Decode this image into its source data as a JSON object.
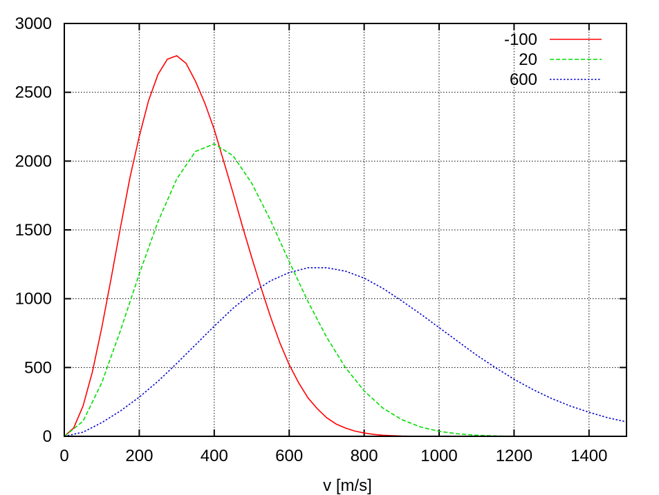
{
  "chart_data": {
    "type": "line",
    "title": "",
    "xlabel": "v [m/s]",
    "ylabel": "",
    "xlim": [
      0,
      1500
    ],
    "ylim": [
      0,
      3000
    ],
    "xticks": [
      "0",
      "200",
      "400",
      "600",
      "800",
      "1000",
      "1200",
      "1400"
    ],
    "yticks": [
      "0",
      "500",
      "1000",
      "1500",
      "2000",
      "2500",
      "3000"
    ],
    "grid": true,
    "legend_position": "top-right",
    "series": [
      {
        "name": "-100",
        "color": "#ff0000",
        "dash": "solid",
        "x": [
          0,
          25,
          50,
          75,
          100,
          125,
          150,
          175,
          200,
          225,
          250,
          275,
          300,
          325,
          350,
          375,
          400,
          425,
          450,
          475,
          500,
          525,
          550,
          575,
          600,
          625,
          650,
          675,
          700,
          725,
          750,
          775,
          800,
          825,
          850,
          875,
          900,
          950,
          1000,
          1100,
          1200,
          1300,
          1400,
          1500
        ],
        "values": [
          0,
          60,
          220,
          470,
          790,
          1150,
          1520,
          1880,
          2180,
          2440,
          2630,
          2740,
          2765,
          2710,
          2580,
          2420,
          2230,
          2000,
          1770,
          1530,
          1300,
          1080,
          870,
          680,
          520,
          390,
          280,
          200,
          135,
          90,
          60,
          38,
          24,
          14,
          8,
          5,
          2,
          0,
          0,
          0,
          0,
          0,
          0,
          0
        ]
      },
      {
        "name": "20",
        "color": "#00dd00",
        "dash": "dashed",
        "x": [
          0,
          50,
          100,
          150,
          200,
          250,
          300,
          350,
          400,
          450,
          500,
          550,
          600,
          650,
          700,
          750,
          800,
          850,
          900,
          950,
          1000,
          1050,
          1100,
          1150,
          1200,
          1300,
          1400,
          1500
        ],
        "values": [
          0,
          110,
          390,
          770,
          1180,
          1560,
          1870,
          2070,
          2125,
          2040,
          1840,
          1570,
          1270,
          980,
          720,
          500,
          330,
          205,
          122,
          68,
          36,
          18,
          8,
          3,
          0,
          0,
          0,
          0
        ]
      },
      {
        "name": "600",
        "color": "#0000cc",
        "dash": "dotted",
        "x": [
          0,
          50,
          100,
          150,
          200,
          250,
          300,
          350,
          400,
          450,
          500,
          550,
          600,
          650,
          700,
          750,
          800,
          850,
          900,
          950,
          1000,
          1050,
          1100,
          1150,
          1200,
          1250,
          1300,
          1350,
          1400,
          1450,
          1500
        ],
        "values": [
          0,
          30,
          100,
          185,
          285,
          400,
          530,
          665,
          800,
          930,
          1040,
          1130,
          1190,
          1225,
          1225,
          1200,
          1150,
          1075,
          985,
          890,
          790,
          690,
          590,
          500,
          415,
          340,
          275,
          220,
          175,
          135,
          105
        ]
      }
    ]
  }
}
